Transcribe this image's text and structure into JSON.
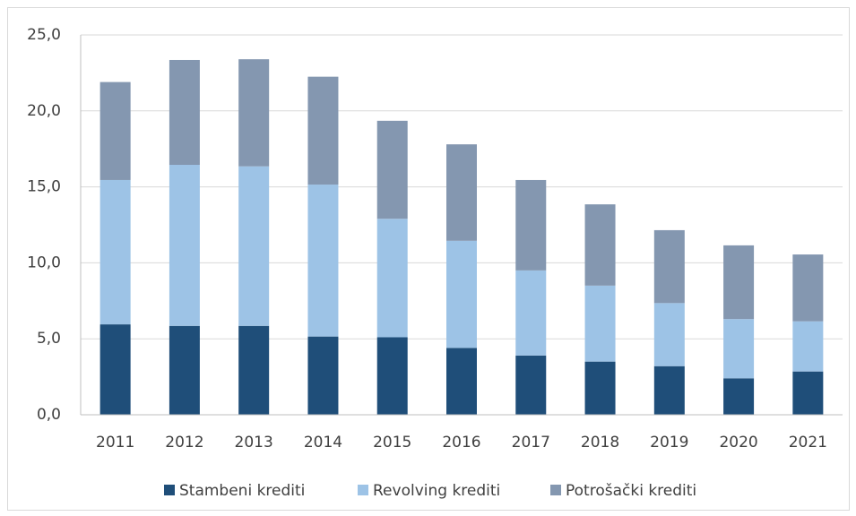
{
  "chart_data": {
    "type": "stacked_bar",
    "categories": [
      "2011",
      "2012",
      "2013",
      "2014",
      "2015",
      "2016",
      "2017",
      "2018",
      "2019",
      "2020",
      "2021"
    ],
    "series": [
      {
        "name": "Stambeni krediti",
        "color": "#1f4e79",
        "values": [
          5.95,
          5.85,
          5.85,
          5.15,
          5.1,
          4.4,
          3.9,
          3.5,
          3.2,
          2.4,
          2.85
        ]
      },
      {
        "name": "Revolving krediti",
        "color": "#9dc3e6",
        "values": [
          9.5,
          10.6,
          10.5,
          10.0,
          7.8,
          7.05,
          5.6,
          5.0,
          4.15,
          3.9,
          3.3
        ]
      },
      {
        "name": "Potrošački krediti",
        "color": "#8497b0",
        "values": [
          6.45,
          6.9,
          7.05,
          7.1,
          6.45,
          6.35,
          5.95,
          5.35,
          4.8,
          4.85,
          4.4
        ]
      }
    ],
    "ylim": [
      0,
      25
    ],
    "yticks": [
      {
        "value": 0,
        "label": "0,0"
      },
      {
        "value": 5,
        "label": "5,0"
      },
      {
        "value": 10,
        "label": "10,0"
      },
      {
        "value": 15,
        "label": "15,0"
      },
      {
        "value": 20,
        "label": "20,0"
      },
      {
        "value": 25,
        "label": "25,0"
      }
    ],
    "grid": true,
    "legend": "bottom"
  }
}
